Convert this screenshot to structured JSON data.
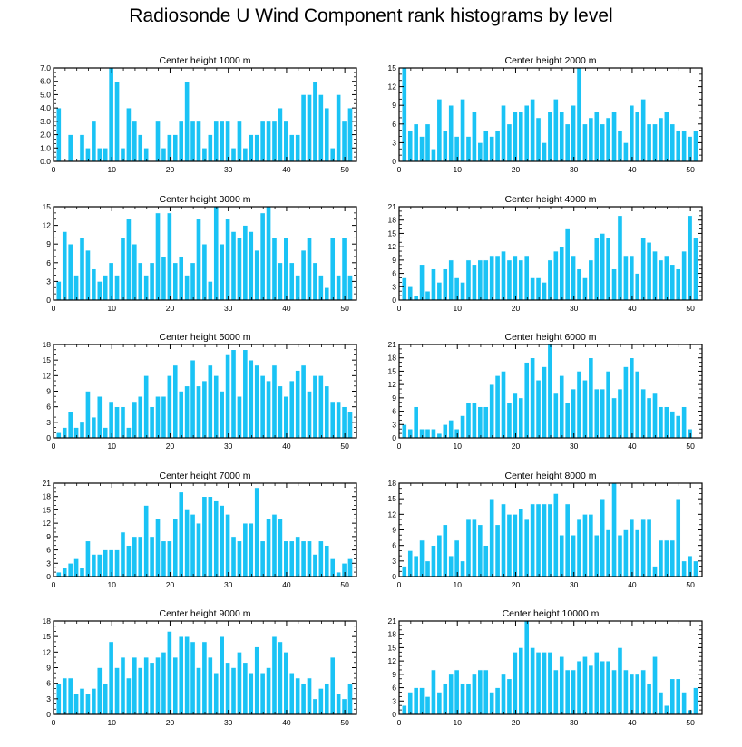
{
  "title": "Radiosonde U Wind Component rank histograms by level",
  "colors": {
    "bar": "#1AC3F5",
    "bar_edge": "#ffffff",
    "axis": "#000000"
  },
  "chart_data": [
    {
      "type": "bar",
      "title": "Center height 1000 m",
      "xlim": [
        0,
        52
      ],
      "ylim": [
        0,
        7
      ],
      "yticks": [
        "0.0",
        "1.0",
        "2.0",
        "3.0",
        "4.0",
        "5.0",
        "6.0",
        "7.0"
      ],
      "ytick_values": [
        0,
        1,
        2,
        3,
        4,
        5,
        6,
        7
      ],
      "xticks": [
        "0",
        "10",
        "20",
        "30",
        "40",
        "50"
      ],
      "xtick_values": [
        0,
        10,
        20,
        30,
        40,
        50
      ],
      "x": [
        1,
        2,
        3,
        4,
        5,
        6,
        7,
        8,
        9,
        10,
        11,
        12,
        13,
        14,
        15,
        16,
        17,
        18,
        19,
        20,
        21,
        22,
        23,
        24,
        25,
        26,
        27,
        28,
        29,
        30,
        31,
        32,
        33,
        34,
        35,
        36,
        37,
        38,
        39,
        40,
        41,
        42,
        43,
        44,
        45,
        46,
        47,
        48,
        49,
        50,
        51
      ],
      "values": [
        4,
        0,
        2,
        0,
        2,
        1,
        3,
        1,
        1,
        7,
        6,
        1,
        4,
        3,
        2,
        1,
        0,
        3,
        1,
        2,
        2,
        3,
        6,
        3,
        3,
        1,
        2,
        3,
        3,
        3,
        1,
        3,
        1,
        2,
        2,
        3,
        3,
        3,
        4,
        3,
        2,
        2,
        5,
        5,
        6,
        5,
        4,
        1,
        5,
        3,
        4
      ]
    },
    {
      "type": "bar",
      "title": "Center height 2000 m",
      "xlim": [
        0,
        52
      ],
      "ylim": [
        0,
        15
      ],
      "yticks": [
        "0",
        "3",
        "6",
        "9",
        "12",
        "15"
      ],
      "ytick_values": [
        0,
        3,
        6,
        9,
        12,
        15
      ],
      "xticks": [
        "0",
        "10",
        "20",
        "30",
        "40",
        "50"
      ],
      "xtick_values": [
        0,
        10,
        20,
        30,
        40,
        50
      ],
      "x": [
        1,
        2,
        3,
        4,
        5,
        6,
        7,
        8,
        9,
        10,
        11,
        12,
        13,
        14,
        15,
        16,
        17,
        18,
        19,
        20,
        21,
        22,
        23,
        24,
        25,
        26,
        27,
        28,
        29,
        30,
        31,
        32,
        33,
        34,
        35,
        36,
        37,
        38,
        39,
        40,
        41,
        42,
        43,
        44,
        45,
        46,
        47,
        48,
        49,
        50,
        51
      ],
      "values": [
        15,
        5,
        6,
        4,
        6,
        2,
        10,
        5,
        9,
        4,
        10,
        4,
        8,
        3,
        5,
        4,
        5,
        9,
        6,
        8,
        8,
        9,
        10,
        7,
        3,
        8,
        10,
        8,
        6,
        9,
        15,
        6,
        7,
        8,
        6,
        7,
        8,
        5,
        3,
        9,
        8,
        10,
        6,
        6,
        7,
        8,
        6,
        5,
        5,
        4,
        5
      ]
    },
    {
      "type": "bar",
      "title": "Center height 3000 m",
      "xlim": [
        0,
        52
      ],
      "ylim": [
        0,
        15
      ],
      "yticks": [
        "0",
        "3",
        "6",
        "9",
        "12",
        "15"
      ],
      "ytick_values": [
        0,
        3,
        6,
        9,
        12,
        15
      ],
      "xticks": [
        "0",
        "10",
        "20",
        "30",
        "40",
        "50"
      ],
      "xtick_values": [
        0,
        10,
        20,
        30,
        40,
        50
      ],
      "x": [
        1,
        2,
        3,
        4,
        5,
        6,
        7,
        8,
        9,
        10,
        11,
        12,
        13,
        14,
        15,
        16,
        17,
        18,
        19,
        20,
        21,
        22,
        23,
        24,
        25,
        26,
        27,
        28,
        29,
        30,
        31,
        32,
        33,
        34,
        35,
        36,
        37,
        38,
        39,
        40,
        41,
        42,
        43,
        44,
        45,
        46,
        47,
        48,
        49,
        50,
        51
      ],
      "values": [
        3,
        11,
        9,
        4,
        10,
        8,
        5,
        3,
        4,
        6,
        4,
        10,
        13,
        9,
        6,
        4,
        6,
        14,
        7,
        14,
        6,
        7,
        4,
        6,
        13,
        9,
        3,
        15,
        9,
        13,
        11,
        10,
        12,
        11,
        8,
        14,
        15,
        10,
        6,
        10,
        6,
        4,
        8,
        10,
        6,
        4,
        2,
        10,
        4,
        10,
        4
      ]
    },
    {
      "type": "bar",
      "title": "Center height 4000 m",
      "xlim": [
        0,
        52
      ],
      "ylim": [
        0,
        21
      ],
      "yticks": [
        "0",
        "3",
        "6",
        "9",
        "12",
        "15",
        "18",
        "21"
      ],
      "ytick_values": [
        0,
        3,
        6,
        9,
        12,
        15,
        18,
        21
      ],
      "xticks": [
        "0",
        "10",
        "20",
        "30",
        "40",
        "50"
      ],
      "xtick_values": [
        0,
        10,
        20,
        30,
        40,
        50
      ],
      "x": [
        1,
        2,
        3,
        4,
        5,
        6,
        7,
        8,
        9,
        10,
        11,
        12,
        13,
        14,
        15,
        16,
        17,
        18,
        19,
        20,
        21,
        22,
        23,
        24,
        25,
        26,
        27,
        28,
        29,
        30,
        31,
        32,
        33,
        34,
        35,
        36,
        37,
        38,
        39,
        40,
        41,
        42,
        43,
        44,
        45,
        46,
        47,
        48,
        49,
        50,
        51
      ],
      "values": [
        5,
        3,
        1,
        8,
        2,
        7,
        4,
        7,
        9,
        5,
        4,
        9,
        8,
        9,
        9,
        10,
        10,
        11,
        9,
        10,
        9,
        10,
        5,
        5,
        4,
        9,
        11,
        12,
        16,
        10,
        7,
        5,
        9,
        14,
        15,
        14,
        7,
        19,
        10,
        10,
        6,
        14,
        13,
        11,
        9,
        10,
        8,
        7,
        11,
        19,
        14
      ]
    },
    {
      "type": "bar",
      "title": "Center height 5000 m",
      "xlim": [
        0,
        52
      ],
      "ylim": [
        0,
        18
      ],
      "yticks": [
        "0",
        "3",
        "6",
        "9",
        "12",
        "15",
        "18"
      ],
      "ytick_values": [
        0,
        3,
        6,
        9,
        12,
        15,
        18
      ],
      "xticks": [
        "0",
        "10",
        "20",
        "30",
        "40",
        "50"
      ],
      "xtick_values": [
        0,
        10,
        20,
        30,
        40,
        50
      ],
      "x": [
        1,
        2,
        3,
        4,
        5,
        6,
        7,
        8,
        9,
        10,
        11,
        12,
        13,
        14,
        15,
        16,
        17,
        18,
        19,
        20,
        21,
        22,
        23,
        24,
        25,
        26,
        27,
        28,
        29,
        30,
        31,
        32,
        33,
        34,
        35,
        36,
        37,
        38,
        39,
        40,
        41,
        42,
        43,
        44,
        45,
        46,
        47,
        48,
        49,
        50,
        51
      ],
      "values": [
        1,
        2,
        5,
        2,
        3,
        9,
        4,
        8,
        2,
        7,
        6,
        6,
        2,
        7,
        8,
        12,
        6,
        8,
        8,
        12,
        14,
        9,
        10,
        15,
        10,
        11,
        14,
        12,
        9,
        16,
        17,
        8,
        17,
        15,
        14,
        12,
        11,
        14,
        10,
        8,
        11,
        13,
        14,
        9,
        12,
        12,
        10,
        7,
        7,
        6,
        5
      ]
    },
    {
      "type": "bar",
      "title": "Center height 6000 m",
      "xlim": [
        0,
        52
      ],
      "ylim": [
        0,
        21
      ],
      "yticks": [
        "0",
        "3",
        "6",
        "9",
        "12",
        "15",
        "18",
        "21"
      ],
      "ytick_values": [
        0,
        3,
        6,
        9,
        12,
        15,
        18,
        21
      ],
      "xticks": [
        "0",
        "10",
        "20",
        "30",
        "40",
        "50"
      ],
      "xtick_values": [
        0,
        10,
        20,
        30,
        40,
        50
      ],
      "x": [
        1,
        2,
        3,
        4,
        5,
        6,
        7,
        8,
        9,
        10,
        11,
        12,
        13,
        14,
        15,
        16,
        17,
        18,
        19,
        20,
        21,
        22,
        23,
        24,
        25,
        26,
        27,
        28,
        29,
        30,
        31,
        32,
        33,
        34,
        35,
        36,
        37,
        38,
        39,
        40,
        41,
        42,
        43,
        44,
        45,
        46,
        47,
        48,
        49,
        50,
        51
      ],
      "values": [
        3,
        2,
        7,
        2,
        2,
        2,
        1,
        3,
        4,
        2,
        5,
        8,
        8,
        7,
        7,
        12,
        14,
        15,
        8,
        10,
        9,
        17,
        18,
        13,
        16,
        21,
        10,
        14,
        8,
        11,
        15,
        13,
        18,
        11,
        11,
        15,
        9,
        11,
        16,
        18,
        15,
        11,
        9,
        10,
        7,
        7,
        6,
        5,
        7,
        2,
        0
      ]
    },
    {
      "type": "bar",
      "title": "Center height 7000 m",
      "xlim": [
        0,
        52
      ],
      "ylim": [
        0,
        21
      ],
      "yticks": [
        "0",
        "3",
        "6",
        "9",
        "12",
        "15",
        "18",
        "21"
      ],
      "ytick_values": [
        0,
        3,
        6,
        9,
        12,
        15,
        18,
        21
      ],
      "xticks": [
        "0",
        "10",
        "20",
        "30",
        "40",
        "50"
      ],
      "xtick_values": [
        0,
        10,
        20,
        30,
        40,
        50
      ],
      "x": [
        1,
        2,
        3,
        4,
        5,
        6,
        7,
        8,
        9,
        10,
        11,
        12,
        13,
        14,
        15,
        16,
        17,
        18,
        19,
        20,
        21,
        22,
        23,
        24,
        25,
        26,
        27,
        28,
        29,
        30,
        31,
        32,
        33,
        34,
        35,
        36,
        37,
        38,
        39,
        40,
        41,
        42,
        43,
        44,
        45,
        46,
        47,
        48,
        49,
        50,
        51
      ],
      "values": [
        1,
        2,
        3,
        4,
        2,
        8,
        5,
        5,
        6,
        6,
        6,
        10,
        7,
        9,
        9,
        16,
        9,
        13,
        8,
        8,
        13,
        19,
        15,
        14,
        12,
        18,
        18,
        17,
        16,
        14,
        9,
        8,
        12,
        12,
        20,
        8,
        13,
        14,
        13,
        8,
        8,
        9,
        8,
        8,
        5,
        8,
        7,
        4,
        1,
        3,
        4
      ]
    },
    {
      "type": "bar",
      "title": "Center height 8000 m",
      "xlim": [
        0,
        52
      ],
      "ylim": [
        0,
        18
      ],
      "yticks": [
        "0",
        "3",
        "6",
        "9",
        "12",
        "15",
        "18"
      ],
      "ytick_values": [
        0,
        3,
        6,
        9,
        12,
        15,
        18
      ],
      "xticks": [
        "0",
        "10",
        "20",
        "30",
        "40",
        "50"
      ],
      "xtick_values": [
        0,
        10,
        20,
        30,
        40,
        50
      ],
      "x": [
        1,
        2,
        3,
        4,
        5,
        6,
        7,
        8,
        9,
        10,
        11,
        12,
        13,
        14,
        15,
        16,
        17,
        18,
        19,
        20,
        21,
        22,
        23,
        24,
        25,
        26,
        27,
        28,
        29,
        30,
        31,
        32,
        33,
        34,
        35,
        36,
        37,
        38,
        39,
        40,
        41,
        42,
        43,
        44,
        45,
        46,
        47,
        48,
        49,
        50,
        51
      ],
      "values": [
        2,
        5,
        4,
        7,
        3,
        6,
        8,
        10,
        4,
        7,
        3,
        11,
        11,
        10,
        6,
        15,
        10,
        14,
        12,
        12,
        13,
        11,
        14,
        14,
        14,
        14,
        16,
        8,
        14,
        8,
        11,
        12,
        12,
        8,
        15,
        9,
        18,
        8,
        9,
        11,
        9,
        11,
        11,
        2,
        7,
        7,
        7,
        15,
        3,
        4,
        3
      ]
    },
    {
      "type": "bar",
      "title": "Center height 9000 m",
      "xlim": [
        0,
        52
      ],
      "ylim": [
        0,
        18
      ],
      "yticks": [
        "0",
        "3",
        "6",
        "9",
        "12",
        "15",
        "18"
      ],
      "ytick_values": [
        0,
        3,
        6,
        9,
        12,
        15,
        18
      ],
      "xticks": [
        "0",
        "10",
        "20",
        "30",
        "40",
        "50"
      ],
      "xtick_values": [
        0,
        10,
        20,
        30,
        40,
        50
      ],
      "x": [
        1,
        2,
        3,
        4,
        5,
        6,
        7,
        8,
        9,
        10,
        11,
        12,
        13,
        14,
        15,
        16,
        17,
        18,
        19,
        20,
        21,
        22,
        23,
        24,
        25,
        26,
        27,
        28,
        29,
        30,
        31,
        32,
        33,
        34,
        35,
        36,
        37,
        38,
        39,
        40,
        41,
        42,
        43,
        44,
        45,
        46,
        47,
        48,
        49,
        50,
        51
      ],
      "values": [
        6,
        7,
        7,
        4,
        5,
        4,
        5,
        9,
        6,
        14,
        9,
        11,
        7,
        11,
        9,
        11,
        10,
        11,
        12,
        16,
        11,
        15,
        15,
        14,
        9,
        14,
        11,
        8,
        15,
        10,
        9,
        12,
        10,
        8,
        13,
        8,
        9,
        15,
        14,
        12,
        8,
        7,
        6,
        7,
        3,
        5,
        6,
        11,
        4,
        3,
        6
      ]
    },
    {
      "type": "bar",
      "title": "Center height 10000 m",
      "xlim": [
        0,
        52
      ],
      "ylim": [
        0,
        21
      ],
      "yticks": [
        "0",
        "3",
        "6",
        "9",
        "12",
        "15",
        "18",
        "21"
      ],
      "ytick_values": [
        0,
        3,
        6,
        9,
        12,
        15,
        18,
        21
      ],
      "xticks": [
        "0",
        "10",
        "20",
        "30",
        "40",
        "50"
      ],
      "xtick_values": [
        0,
        10,
        20,
        30,
        40,
        50
      ],
      "x": [
        1,
        2,
        3,
        4,
        5,
        6,
        7,
        8,
        9,
        10,
        11,
        12,
        13,
        14,
        15,
        16,
        17,
        18,
        19,
        20,
        21,
        22,
        23,
        24,
        25,
        26,
        27,
        28,
        29,
        30,
        31,
        32,
        33,
        34,
        35,
        36,
        37,
        38,
        39,
        40,
        41,
        42,
        43,
        44,
        45,
        46,
        47,
        48,
        49,
        50,
        51
      ],
      "values": [
        2,
        5,
        6,
        6,
        4,
        10,
        5,
        7,
        9,
        10,
        7,
        7,
        9,
        10,
        10,
        5,
        6,
        9,
        8,
        14,
        15,
        21,
        15,
        14,
        14,
        14,
        10,
        13,
        10,
        10,
        12,
        13,
        11,
        14,
        12,
        12,
        10,
        15,
        10,
        9,
        9,
        10,
        7,
        13,
        5,
        2,
        8,
        8,
        5,
        1,
        6
      ]
    }
  ]
}
